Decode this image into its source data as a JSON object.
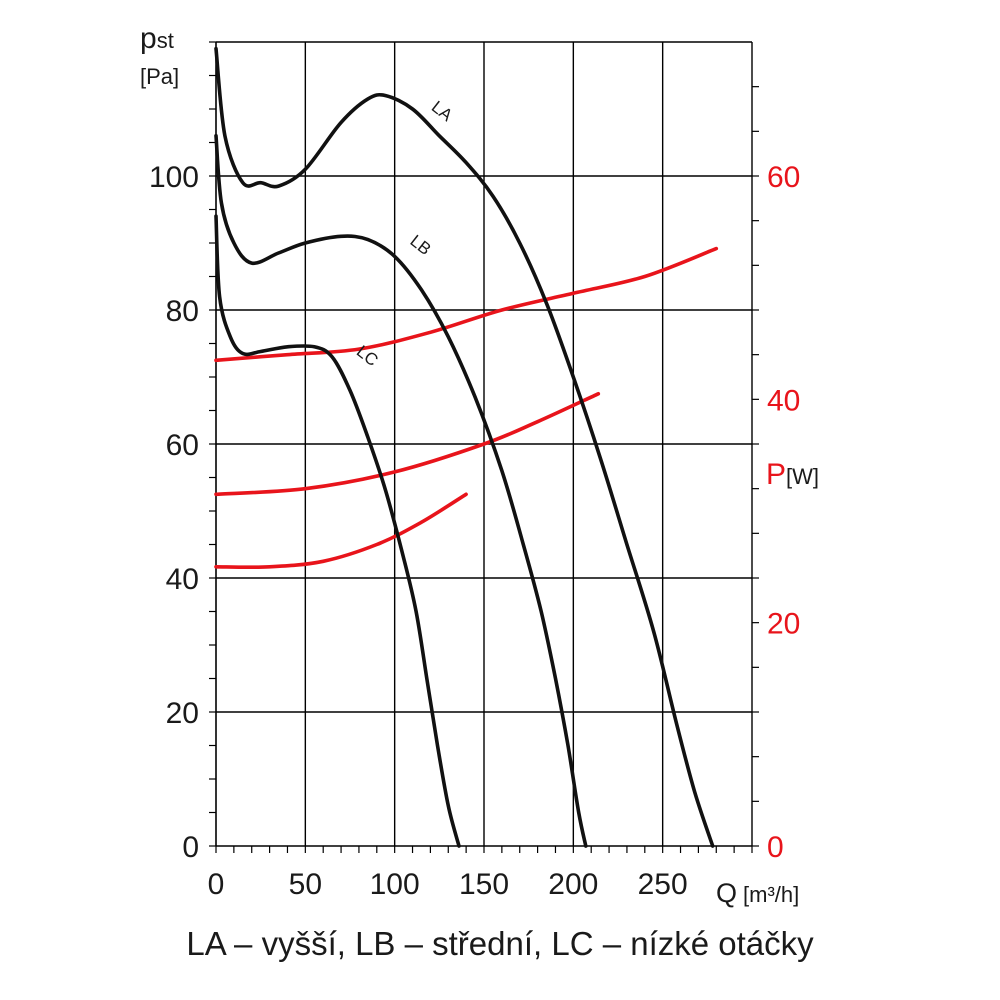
{
  "chart_data": {
    "type": "line",
    "xlabel": "Q",
    "xunit": "[m³/h]",
    "ylabel": "pst",
    "ylabel_base": "p",
    "ylabel_sub": "st",
    "yunit": "[Pa]",
    "y2label": "P",
    "y2unit": "[W]",
    "xlim": [
      0,
      300
    ],
    "ylim": [
      0,
      120
    ],
    "y2lim": [
      0,
      72
    ],
    "xticks": [
      0,
      50,
      100,
      150,
      200,
      250
    ],
    "yticks": [
      0,
      20,
      40,
      60,
      80,
      100
    ],
    "y2ticks": [
      0,
      20,
      40,
      60
    ],
    "grid": true,
    "caption": "LA – vyšší, LB – střední, LC – nízké otáčky",
    "colors": {
      "pressure": "#111111",
      "power": "#e8141b",
      "grid": "#000000"
    },
    "pressure_series": [
      {
        "name": "LA",
        "label_at": [
          120,
          110
        ],
        "points": [
          [
            0,
            119
          ],
          [
            5,
            106
          ],
          [
            15,
            99
          ],
          [
            25,
            99
          ],
          [
            35,
            98.5
          ],
          [
            50,
            101
          ],
          [
            70,
            108
          ],
          [
            85,
            111.5
          ],
          [
            95,
            112
          ],
          [
            110,
            110
          ],
          [
            125,
            106
          ],
          [
            140,
            102
          ],
          [
            155,
            97
          ],
          [
            170,
            90
          ],
          [
            185,
            81
          ],
          [
            200,
            70
          ],
          [
            215,
            58
          ],
          [
            230,
            45
          ],
          [
            245,
            32
          ],
          [
            258,
            18
          ],
          [
            268,
            8
          ],
          [
            278,
            0
          ]
        ]
      },
      {
        "name": "LB",
        "label_at": [
          108,
          90
        ],
        "points": [
          [
            0,
            106
          ],
          [
            3,
            96
          ],
          [
            10,
            90
          ],
          [
            20,
            87
          ],
          [
            35,
            88.5
          ],
          [
            50,
            90
          ],
          [
            70,
            91
          ],
          [
            85,
            90.5
          ],
          [
            100,
            88
          ],
          [
            115,
            83
          ],
          [
            130,
            76
          ],
          [
            145,
            67
          ],
          [
            160,
            56
          ],
          [
            172,
            45
          ],
          [
            182,
            35
          ],
          [
            190,
            25
          ],
          [
            197,
            15
          ],
          [
            203,
            5
          ],
          [
            207,
            0
          ]
        ]
      },
      {
        "name": "LC",
        "label_at": [
          78,
          73.5
        ],
        "points": [
          [
            0,
            94
          ],
          [
            2,
            82
          ],
          [
            8,
            76
          ],
          [
            15,
            73.5
          ],
          [
            25,
            73.8
          ],
          [
            40,
            74.5
          ],
          [
            55,
            74.5
          ],
          [
            65,
            73
          ],
          [
            75,
            68
          ],
          [
            85,
            61
          ],
          [
            95,
            53
          ],
          [
            105,
            43
          ],
          [
            112,
            35
          ],
          [
            118,
            25
          ],
          [
            124,
            15
          ],
          [
            130,
            6
          ],
          [
            136,
            0
          ]
        ]
      }
    ],
    "power_series": [
      {
        "curve": "LA",
        "points": [
          [
            0,
            43.5
          ],
          [
            40,
            44
          ],
          [
            80,
            44.5
          ],
          [
            120,
            46
          ],
          [
            160,
            48
          ],
          [
            200,
            49.5
          ],
          [
            240,
            51
          ],
          [
            280,
            53.5
          ]
        ]
      },
      {
        "curve": "LB",
        "points": [
          [
            0,
            31.5
          ],
          [
            50,
            32
          ],
          [
            100,
            33.5
          ],
          [
            150,
            36
          ],
          [
            180,
            38
          ],
          [
            214,
            40.5
          ]
        ]
      },
      {
        "curve": "LC",
        "points": [
          [
            0,
            25
          ],
          [
            30,
            25
          ],
          [
            60,
            25.5
          ],
          [
            90,
            27
          ],
          [
            115,
            29
          ],
          [
            140,
            31.5
          ]
        ]
      }
    ]
  }
}
